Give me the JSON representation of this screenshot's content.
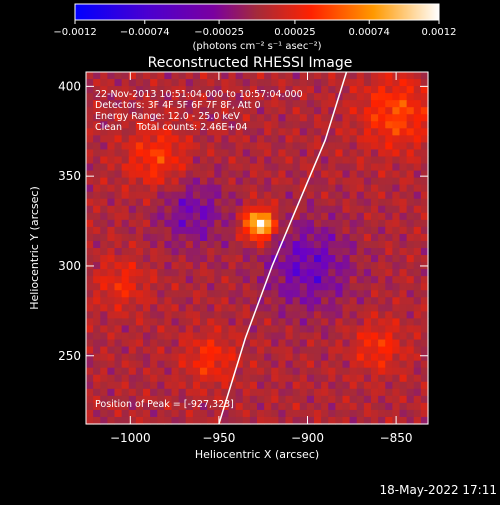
{
  "chart_data": {
    "type": "heatmap",
    "title": "Reconstructed RHESSI Image",
    "xlabel": "Heliocentric X (arcsec)",
    "ylabel": "Heliocentric Y (arcsec)",
    "xlim": [
      -1025,
      -832
    ],
    "ylim": [
      212,
      408
    ],
    "x_ticks": [
      -1000,
      -950,
      -900,
      -850
    ],
    "x_tick_labels": [
      "−1000",
      "−950",
      "−900",
      "−850"
    ],
    "y_ticks": [
      250,
      300,
      350,
      400
    ],
    "y_tick_labels": [
      "250",
      "300",
      "350",
      "400"
    ],
    "colorbar": {
      "min": -0.0012,
      "max": 0.0012,
      "ticks": [
        -0.0012,
        -0.00074,
        -0.00025,
        0.00025,
        0.00074,
        0.0012
      ],
      "tick_labels": [
        "−0.0012",
        "−0.00074",
        "−0.00025",
        "0.00025",
        "0.00074",
        "0.0012"
      ],
      "unit": "(photons cm⁻² s⁻¹ asec⁻²)",
      "colors": [
        "#0000ff",
        "#6a00c8",
        "#a42a3a",
        "#ff2200",
        "#ff9900",
        "#ffffff"
      ]
    },
    "annotation_lines": [
      "22-Nov-2013 10:51:04.000 to 10:57:04.000",
      "Detectors: 3F 4F 5F 6F 7F 8F, Att 0",
      "Energy Range: 12.0 - 25.0 keV",
      "Clean     Total counts: 2.46E+04"
    ],
    "peak_label": "Position of Peak = [-927,323]",
    "peak": {
      "x": -927,
      "y": 323
    },
    "limb_curve": [
      {
        "x": -950,
        "y": 212
      },
      {
        "x": -935,
        "y": 260
      },
      {
        "x": -920,
        "y": 300
      },
      {
        "x": -905,
        "y": 335
      },
      {
        "x": -890,
        "y": 370
      },
      {
        "x": -878,
        "y": 408
      }
    ],
    "features": [
      {
        "name": "peak-source",
        "x": -927,
        "y": 323,
        "sigma": 6,
        "amp": 1.0
      },
      {
        "name": "ridge-east",
        "x": -985,
        "y": 360,
        "sigma": 12,
        "amp": 0.35
      },
      {
        "name": "ridge-west",
        "x": -850,
        "y": 385,
        "sigma": 14,
        "amp": 0.4
      },
      {
        "name": "south-patch",
        "x": -955,
        "y": 248,
        "sigma": 10,
        "amp": 0.3
      },
      {
        "name": "east-low",
        "x": -1005,
        "y": 290,
        "sigma": 10,
        "amp": 0.25
      },
      {
        "name": "west-low",
        "x": -860,
        "y": 255,
        "sigma": 10,
        "amp": 0.3
      },
      {
        "name": "dark-center",
        "x": -900,
        "y": 300,
        "sigma": 18,
        "amp": -0.35
      },
      {
        "name": "dark-east",
        "x": -965,
        "y": 330,
        "sigma": 14,
        "amp": -0.3
      }
    ]
  },
  "timestamp": "18-May-2022 17:11"
}
